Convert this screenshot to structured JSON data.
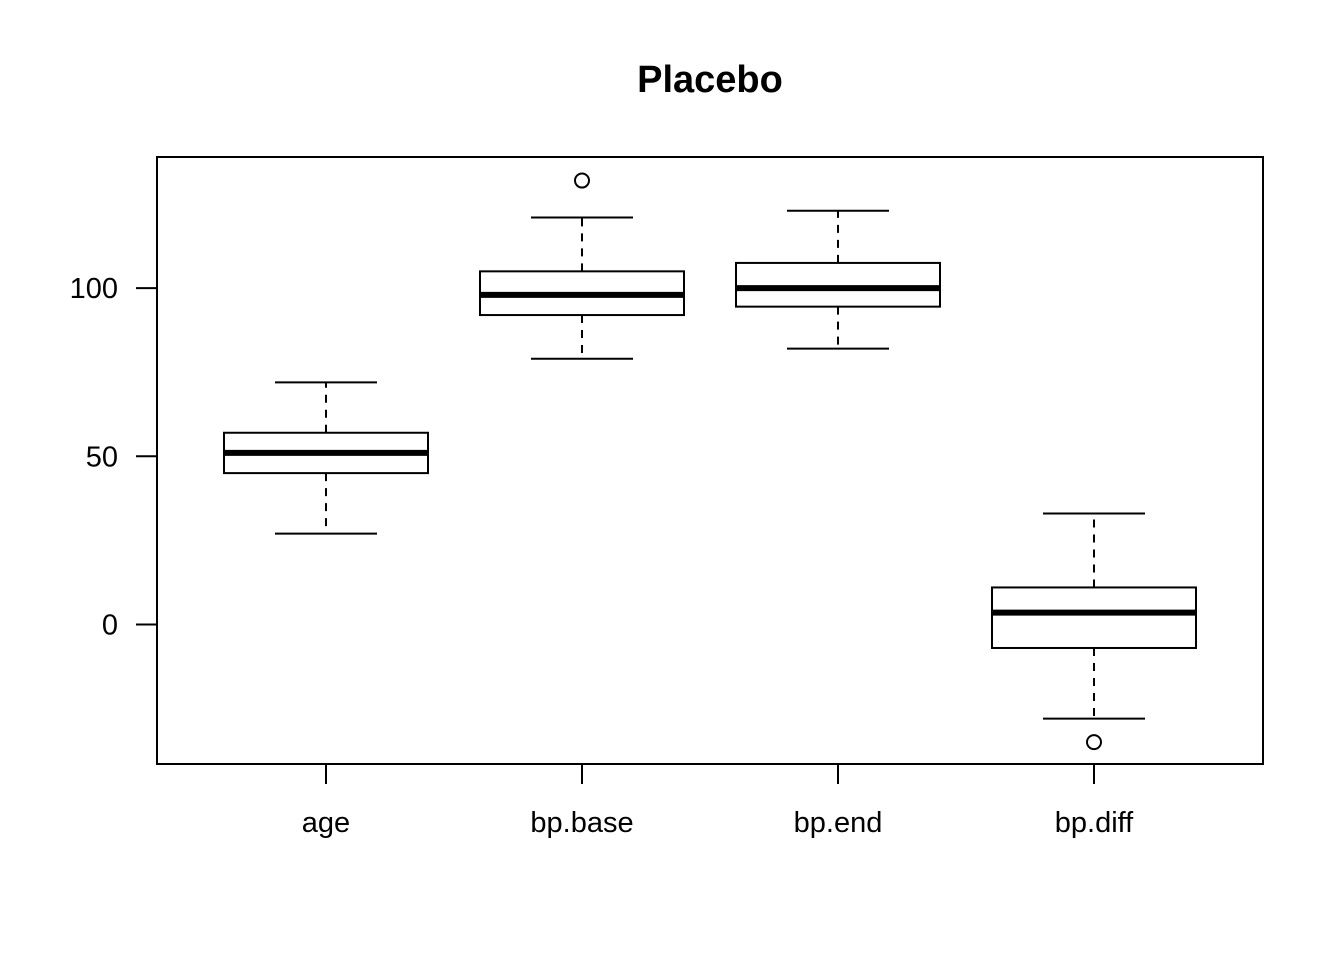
{
  "chart_data": {
    "type": "boxplot",
    "title": "Placebo",
    "xlabel": "",
    "ylabel": "",
    "categories": [
      "age",
      "bp.base",
      "bp.end",
      "bp.diff"
    ],
    "ylim": [
      -41.5,
      139
    ],
    "yticks": [
      0,
      50,
      100
    ],
    "ytick_labels": [
      "0",
      "50",
      "100"
    ],
    "grid": false,
    "boxes": [
      {
        "name": "age",
        "whisker_low": 27,
        "q1": 45,
        "median": 51,
        "q3": 57,
        "whisker_high": 72,
        "outliers": []
      },
      {
        "name": "bp.base",
        "whisker_low": 79,
        "q1": 92,
        "median": 98,
        "q3": 105,
        "whisker_high": 121,
        "outliers": [
          132
        ]
      },
      {
        "name": "bp.end",
        "whisker_low": 82,
        "q1": 94.5,
        "median": 100,
        "q3": 107.5,
        "whisker_high": 123,
        "outliers": []
      },
      {
        "name": "bp.diff",
        "whisker_low": -28,
        "q1": -7,
        "median": 3.5,
        "q3": 11,
        "whisker_high": 33,
        "outliers": [
          -35
        ]
      }
    ]
  }
}
